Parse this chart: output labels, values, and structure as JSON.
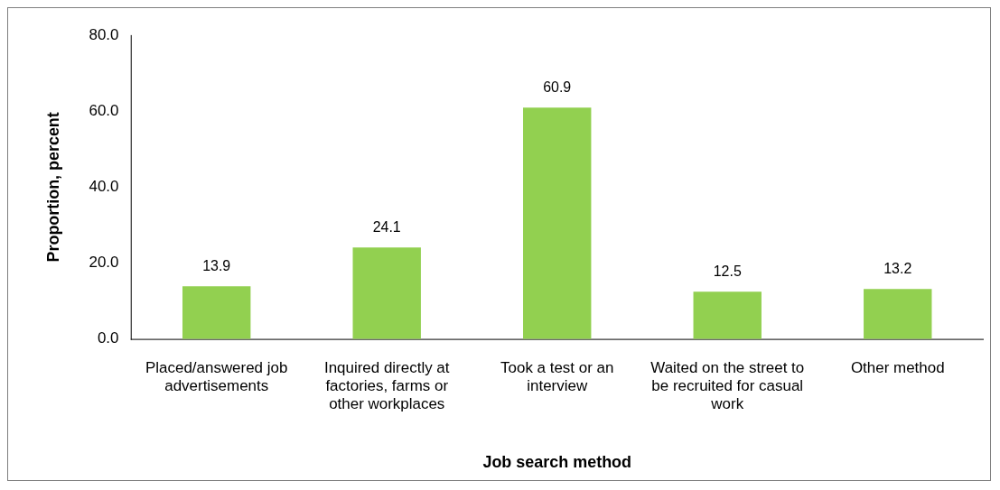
{
  "chart_data": {
    "type": "bar",
    "xlabel": "Job search method",
    "ylabel": "Proportion, percent",
    "categories": [
      "Placed/answered job advertisements",
      "Inquired directly at factories, farms or other workplaces",
      "Took a test or an interview",
      "Waited on the street to be recruited for casual work",
      "Other method"
    ],
    "values": [
      13.9,
      24.1,
      60.9,
      12.5,
      13.2
    ],
    "color": "#92d050",
    "ylim": [
      0,
      80
    ],
    "yticks": [
      {
        "value": 0,
        "label": "0.0"
      },
      {
        "value": 20,
        "label": "20.0"
      },
      {
        "value": 40,
        "label": "40.0"
      },
      {
        "value": 60,
        "label": "60.0"
      },
      {
        "value": 80,
        "label": "80.0"
      }
    ],
    "grid": false,
    "legend": false,
    "data_labels": true
  }
}
